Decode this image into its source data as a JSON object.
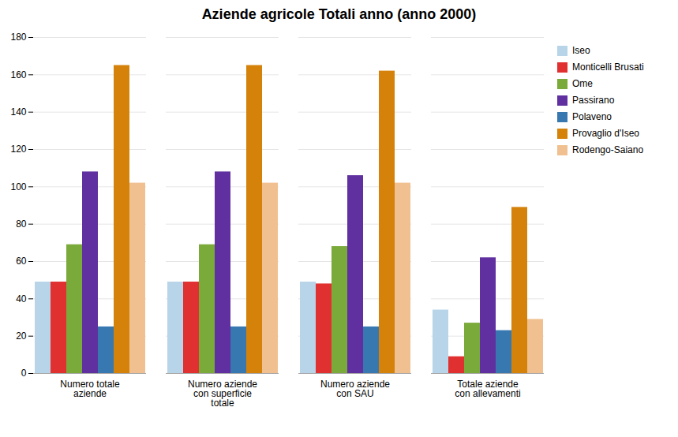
{
  "chart_data": {
    "type": "bar",
    "title": "Aziende agricole Totali anno (anno 2000)",
    "categories": [
      "Numero totale\naziende",
      "Numero aziende\ncon superficie\ntotale",
      "Numero aziende\ncon SAU",
      "Totale aziende\ncon allevamenti"
    ],
    "series": [
      {
        "name": "Iseo",
        "color": "#b8d4e8",
        "values": [
          49,
          49,
          49,
          34
        ]
      },
      {
        "name": "Monticelli Brusati",
        "color": "#e03030",
        "values": [
          49,
          49,
          48,
          9
        ]
      },
      {
        "name": "Ome",
        "color": "#7aaa3a",
        "values": [
          69,
          69,
          68,
          27
        ]
      },
      {
        "name": "Passirano",
        "color": "#6030a0",
        "values": [
          108,
          108,
          106,
          62
        ]
      },
      {
        "name": "Polaveno",
        "color": "#3878b0",
        "values": [
          25,
          25,
          25,
          23
        ]
      },
      {
        "name": "Provaglio d'Iseo",
        "color": "#d4820a",
        "values": [
          165,
          165,
          162,
          89
        ]
      },
      {
        "name": "Rodengo-Saiano",
        "color": "#f0c090",
        "values": [
          102,
          102,
          102,
          29
        ]
      }
    ],
    "ylim": [
      0,
      180
    ],
    "yticks": [
      0,
      20,
      40,
      60,
      80,
      100,
      120,
      140,
      160,
      180
    ],
    "grid": true,
    "legend": "right"
  }
}
